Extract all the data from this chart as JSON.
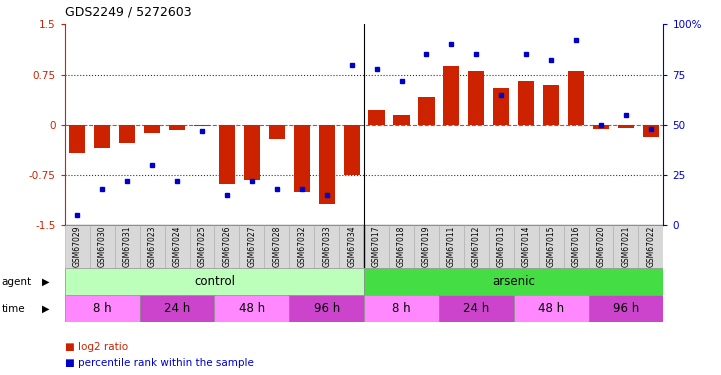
{
  "title": "GDS2249 / 5272603",
  "samples": [
    "GSM67029",
    "GSM67030",
    "GSM67031",
    "GSM67023",
    "GSM67024",
    "GSM67025",
    "GSM67026",
    "GSM67027",
    "GSM67028",
    "GSM67032",
    "GSM67033",
    "GSM67034",
    "GSM67017",
    "GSM67018",
    "GSM67019",
    "GSM67011",
    "GSM67012",
    "GSM67013",
    "GSM67014",
    "GSM67015",
    "GSM67016",
    "GSM67020",
    "GSM67021",
    "GSM67022"
  ],
  "log2ratio": [
    -0.42,
    -0.35,
    -0.28,
    -0.13,
    -0.08,
    -0.02,
    -0.88,
    -0.82,
    -0.22,
    -1.0,
    -1.18,
    -0.75,
    0.22,
    0.15,
    0.42,
    0.88,
    0.8,
    0.55,
    0.65,
    0.6,
    0.8,
    -0.07,
    -0.05,
    -0.18
  ],
  "percentile": [
    5,
    18,
    22,
    30,
    22,
    47,
    15,
    22,
    18,
    18,
    15,
    80,
    78,
    72,
    85,
    90,
    85,
    65,
    85,
    82,
    92,
    50,
    55,
    48
  ],
  "ylim": [
    -1.5,
    1.5
  ],
  "y2lim": [
    0,
    100
  ],
  "yticks_left": [
    -1.5,
    -0.75,
    0,
    0.75,
    1.5
  ],
  "yticks_right": [
    0,
    25,
    50,
    75,
    100
  ],
  "bar_color": "#cc2200",
  "dot_color": "#0000cc",
  "zero_line_color": "#cc4444",
  "ref_line_color": "#333333",
  "agent_groups": [
    {
      "label": "control",
      "start": 0,
      "end": 12,
      "color": "#bbffbb"
    },
    {
      "label": "arsenic",
      "start": 12,
      "end": 24,
      "color": "#44dd44"
    }
  ],
  "time_groups": [
    {
      "label": "8 h",
      "start": 0,
      "end": 3,
      "color": "#ff88ff"
    },
    {
      "label": "24 h",
      "start": 3,
      "end": 6,
      "color": "#cc44cc"
    },
    {
      "label": "48 h",
      "start": 6,
      "end": 9,
      "color": "#ff88ff"
    },
    {
      "label": "96 h",
      "start": 9,
      "end": 12,
      "color": "#cc44cc"
    },
    {
      "label": "8 h",
      "start": 12,
      "end": 15,
      "color": "#ff88ff"
    },
    {
      "label": "24 h",
      "start": 15,
      "end": 18,
      "color": "#cc44cc"
    },
    {
      "label": "48 h",
      "start": 18,
      "end": 21,
      "color": "#ff88ff"
    },
    {
      "label": "96 h",
      "start": 21,
      "end": 24,
      "color": "#cc44cc"
    }
  ],
  "legend_red": "log2 ratio",
  "legend_blue": "percentile rank within the sample",
  "fig_w": 7.21,
  "fig_h": 3.75,
  "dpi": 100
}
